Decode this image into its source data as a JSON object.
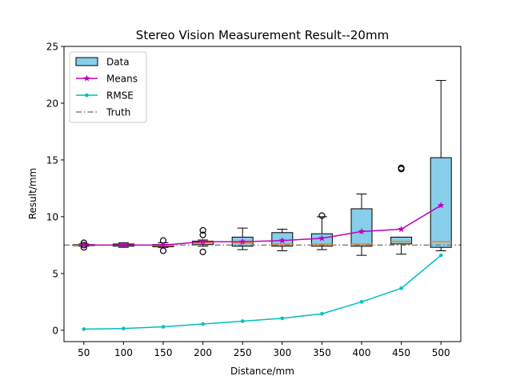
{
  "chart_data": {
    "type": "box",
    "title": "Stereo Vision Measurement Result--20mm",
    "xlabel": "Distance/mm",
    "ylabel": "Result/mm",
    "categories": [
      "50",
      "100",
      "150",
      "200",
      "250",
      "300",
      "350",
      "400",
      "450",
      "500"
    ],
    "ylim": [
      -1,
      25
    ],
    "yticks": [
      0,
      5,
      10,
      15,
      20,
      25
    ],
    "grid": false,
    "legend_position": "top-left",
    "boxes": [
      {
        "x": "50",
        "whisker_low": 7.4,
        "q1": 7.45,
        "median": 7.5,
        "q3": 7.55,
        "whisker_high": 7.6,
        "outliers": [
          7.3,
          7.5,
          7.7
        ]
      },
      {
        "x": "100",
        "whisker_low": 7.3,
        "q1": 7.4,
        "median": 7.5,
        "q3": 7.6,
        "whisker_high": 7.7,
        "outliers": []
      },
      {
        "x": "150",
        "whisker_low": 7.3,
        "q1": 7.35,
        "median": 7.45,
        "q3": 7.55,
        "whisker_high": 7.7,
        "outliers": [
          7.0,
          7.9
        ]
      },
      {
        "x": "200",
        "whisker_low": 7.4,
        "q1": 7.55,
        "median": 7.7,
        "q3": 7.85,
        "whisker_high": 7.95,
        "outliers": [
          6.9,
          8.4,
          8.8
        ]
      },
      {
        "x": "250",
        "whisker_low": 7.1,
        "q1": 7.4,
        "median": 7.7,
        "q3": 8.2,
        "whisker_high": 9.0,
        "outliers": []
      },
      {
        "x": "300",
        "whisker_low": 7.0,
        "q1": 7.4,
        "median": 7.6,
        "q3": 8.6,
        "whisker_high": 8.9,
        "outliers": []
      },
      {
        "x": "350",
        "whisker_low": 7.1,
        "q1": 7.4,
        "median": 7.6,
        "q3": 8.5,
        "whisker_high": 10.0,
        "outliers": [
          10.1
        ]
      },
      {
        "x": "400",
        "whisker_low": 6.6,
        "q1": 7.4,
        "median": 7.6,
        "q3": 10.7,
        "whisker_high": 12.0,
        "outliers": []
      },
      {
        "x": "450",
        "whisker_low": 6.7,
        "q1": 7.6,
        "median": 7.8,
        "q3": 8.2,
        "whisker_high": 8.2,
        "outliers": [
          14.2,
          14.3
        ]
      },
      {
        "x": "500",
        "whisker_low": 7.0,
        "q1": 7.3,
        "median": 7.8,
        "q3": 15.2,
        "whisker_high": 22.0,
        "outliers": []
      }
    ],
    "series": [
      {
        "name": "Means",
        "type": "line",
        "marker": "star",
        "color": "#bf00bf",
        "values": [
          7.5,
          7.5,
          7.5,
          7.8,
          7.8,
          7.9,
          8.1,
          8.7,
          8.9,
          11.0
        ]
      },
      {
        "name": "RMSE",
        "type": "line",
        "marker": "dot",
        "color": "#00bfbf",
        "values": [
          0.1,
          0.15,
          0.3,
          0.55,
          0.8,
          1.05,
          1.45,
          2.5,
          3.7,
          6.6
        ]
      }
    ],
    "truth": {
      "name": "Truth",
      "value": 7.5,
      "style": "dash-dot",
      "color": "#808080"
    },
    "legend": [
      {
        "label": "Data",
        "kind": "box",
        "color": "#87ceeb"
      },
      {
        "label": "Means",
        "kind": "line-star",
        "color": "#bf00bf"
      },
      {
        "label": "RMSE",
        "kind": "line-dot",
        "color": "#00bfbf"
      },
      {
        "label": "Truth",
        "kind": "dashdot",
        "color": "#808080"
      }
    ],
    "colors": {
      "box_fill": "#87ceeb",
      "median": "#ff7f0e"
    }
  }
}
